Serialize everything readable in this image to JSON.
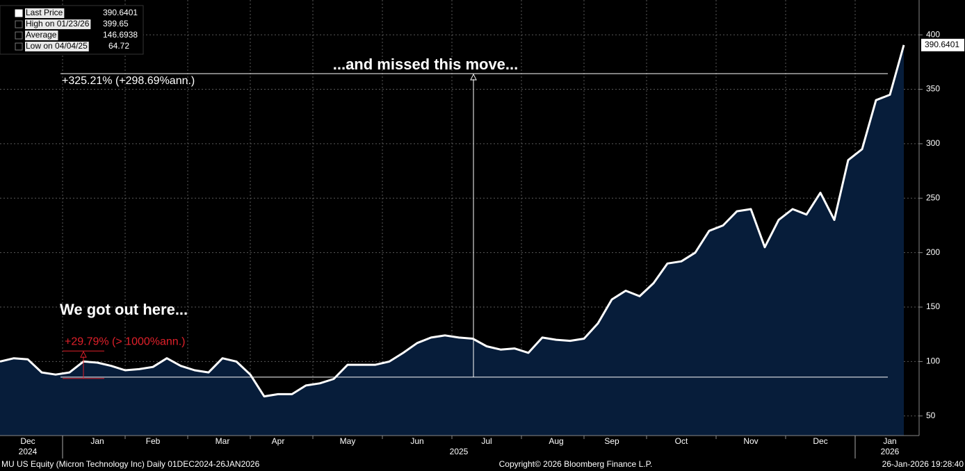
{
  "chart_data": {
    "type": "area",
    "series": [
      {
        "name": "Last Price",
        "color": "#ffffff",
        "fill": "#071d3a",
        "values": [
          100,
          103,
          102,
          90,
          88,
          90,
          100,
          99,
          96,
          92,
          93,
          95,
          103,
          96,
          92,
          90,
          103,
          100,
          88,
          68,
          70,
          70,
          78,
          80,
          84,
          97,
          97,
          97,
          100,
          108,
          117,
          122,
          124,
          122,
          121,
          114,
          111,
          112,
          108,
          122,
          120,
          119,
          121,
          135,
          157,
          165,
          160,
          172,
          190,
          192,
          200,
          220,
          225,
          238,
          240,
          205,
          230,
          240,
          235,
          255,
          230,
          285,
          295,
          340,
          345,
          390.6401
        ]
      }
    ],
    "categories": [
      null,
      null,
      "Dec",
      null,
      null,
      null,
      null,
      "Jan",
      null,
      null,
      null,
      "Feb",
      null,
      null,
      null,
      null,
      "Mar",
      null,
      null,
      null,
      "Apr",
      null,
      null,
      null,
      null,
      "May",
      null,
      null,
      null,
      null,
      "Jun",
      null,
      null,
      null,
      null,
      "Jul",
      null,
      null,
      null,
      null,
      "Aug",
      null,
      null,
      null,
      "Sep",
      null,
      null,
      null,
      null,
      "Oct",
      null,
      null,
      null,
      null,
      "Nov",
      null,
      null,
      null,
      null,
      "Dec",
      null,
      null,
      null,
      null,
      "Jan",
      null
    ],
    "year_labels": [
      "2024",
      "2025",
      "2026"
    ],
    "ylim": [
      32,
      432
    ],
    "yticks": [
      50,
      100,
      150,
      200,
      250,
      300,
      350,
      400
    ],
    "grid": true,
    "legend_stats": [
      {
        "label": "Last Price",
        "value": 390.6401
      },
      {
        "label": "High on 01/23/26",
        "value": 399.65
      },
      {
        "label": "Average",
        "value": 146.6938
      },
      {
        "label": "Low on 04/04/25",
        "value": 64.72
      }
    ],
    "measures": [
      {
        "note": "...and missed this move...",
        "label": "+325.21% (+298.69%ann.)",
        "from": 85.7,
        "to": 364.4,
        "color": "#ffffff"
      },
      {
        "note": "We got out here...",
        "label": "+29.79% (> 1000%ann.)",
        "from": 84.5,
        "to": 109.7,
        "color": "#e0202a"
      }
    ],
    "footer": {
      "security": "MU US Equity (Micron Technology Inc) Daily 01DEC2024-26JAN2026",
      "copyright": "Copyright© 2026 Bloomberg Finance L.P.",
      "timestamp": "26-Jan-2026 19:28:40"
    }
  }
}
